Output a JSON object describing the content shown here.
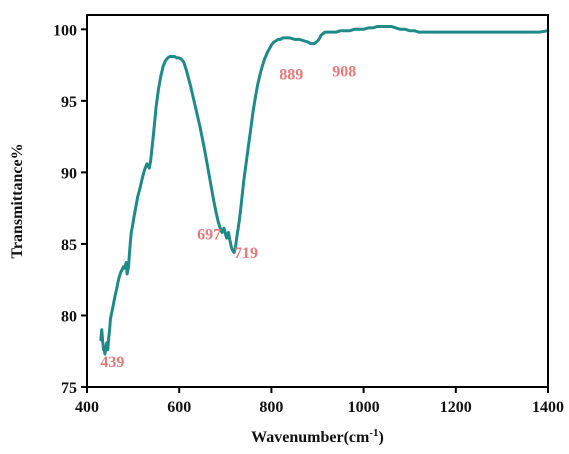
{
  "chart_data": {
    "type": "line",
    "title": "",
    "xlabel": "Wavenumber(cm",
    "xlabel_sup": "-1",
    "xlabel_close": ")",
    "ylabel": "Transmittance%",
    "xlim": [
      400,
      1400
    ],
    "ylim": [
      75,
      101
    ],
    "x_ticks": [
      400,
      600,
      800,
      1000,
      1200,
      1400
    ],
    "y_ticks": [
      75,
      80,
      85,
      90,
      95,
      100
    ],
    "x_tick_labels": [
      "400",
      "600",
      "800",
      "1000",
      "1200",
      "1400"
    ],
    "y_tick_labels": [
      "75",
      "80",
      "85",
      "90",
      "95",
      "100"
    ],
    "grid": false,
    "legend": "none",
    "line_color": "#1f8a87",
    "annotation_color": "#e8797a",
    "series": [
      {
        "x": [
          430,
          432,
          434,
          436,
          438,
          439,
          441,
          443,
          445,
          447,
          449,
          451,
          453,
          455,
          458,
          461,
          464,
          467,
          470,
          473,
          476,
          479,
          482,
          485,
          487,
          490,
          492,
          494,
          496,
          499,
          502,
          506,
          510,
          515,
          520,
          525,
          530,
          535,
          538,
          541,
          544,
          547,
          550,
          555,
          560,
          565,
          570,
          575,
          580,
          585,
          590,
          595,
          600,
          605,
          610,
          615,
          620,
          625,
          630,
          635,
          640,
          645,
          650,
          655,
          660,
          665,
          670,
          675,
          680,
          685,
          690,
          693,
          695,
          697,
          699,
          701,
          703,
          705,
          707,
          709,
          711,
          713,
          715,
          717,
          719,
          721,
          723,
          725,
          728,
          731,
          734,
          737,
          740,
          745,
          750,
          755,
          760,
          765,
          770,
          775,
          780,
          785,
          790,
          795,
          800,
          805,
          810,
          815,
          820,
          825,
          830,
          840,
          850,
          860,
          870,
          880,
          885,
          889,
          893,
          897,
          901,
          905,
          908,
          912,
          916,
          920,
          930,
          940,
          950,
          960,
          970,
          980,
          990,
          1000,
          1010,
          1020,
          1030,
          1040,
          1050,
          1060,
          1070,
          1080,
          1090,
          1100,
          1110,
          1120,
          1140,
          1160,
          1180,
          1200,
          1220,
          1240,
          1260,
          1280,
          1300,
          1320,
          1340,
          1360,
          1380,
          1400
        ],
        "y": [
          78.3,
          79.0,
          78.2,
          77.6,
          77.5,
          77.3,
          77.8,
          78.1,
          77.6,
          78.4,
          79.0,
          79.8,
          80.1,
          80.4,
          80.9,
          81.4,
          81.8,
          82.3,
          82.7,
          83.0,
          83.2,
          83.4,
          83.3,
          83.7,
          82.9,
          83.4,
          84.3,
          85.1,
          85.8,
          86.3,
          86.9,
          87.6,
          88.3,
          88.9,
          89.6,
          90.2,
          90.6,
          90.3,
          90.8,
          91.7,
          92.6,
          93.6,
          94.6,
          95.8,
          96.7,
          97.4,
          97.8,
          98.0,
          98.1,
          98.1,
          98.1,
          98.0,
          98.0,
          97.9,
          97.7,
          97.2,
          96.6,
          96.0,
          95.3,
          94.6,
          93.9,
          93.2,
          92.4,
          91.6,
          90.7,
          89.8,
          88.9,
          88.0,
          87.2,
          86.5,
          86.0,
          85.8,
          86.0,
          86.1,
          85.9,
          85.6,
          85.4,
          85.7,
          85.8,
          85.4,
          85.1,
          84.8,
          84.6,
          84.5,
          84.4,
          84.6,
          85.0,
          85.5,
          86.1,
          86.8,
          87.6,
          88.5,
          89.4,
          90.6,
          91.8,
          93.0,
          94.2,
          95.2,
          96.1,
          96.8,
          97.4,
          97.9,
          98.3,
          98.6,
          98.9,
          99.1,
          99.2,
          99.3,
          99.3,
          99.4,
          99.4,
          99.4,
          99.3,
          99.3,
          99.2,
          99.1,
          99.0,
          99.0,
          99.0,
          99.1,
          99.2,
          99.4,
          99.6,
          99.7,
          99.8,
          99.8,
          99.8,
          99.8,
          99.9,
          99.9,
          99.9,
          100.0,
          100.0,
          100.0,
          100.1,
          100.1,
          100.2,
          100.2,
          100.2,
          100.2,
          100.1,
          100.0,
          100.0,
          99.9,
          99.9,
          99.8,
          99.8,
          99.8,
          99.8,
          99.8,
          99.8,
          99.8,
          99.8,
          99.8,
          99.8,
          99.8,
          99.8,
          99.8,
          99.8,
          99.9
        ]
      }
    ],
    "annotations": [
      {
        "text": "439",
        "x": 455,
        "y": 76.4
      },
      {
        "text": "697",
        "x": 665,
        "y": 85.3
      },
      {
        "text": "719",
        "x": 745,
        "y": 84.0
      },
      {
        "text": "889",
        "x": 843,
        "y": 96.5
      },
      {
        "text": "908",
        "x": 958,
        "y": 96.7
      }
    ]
  }
}
